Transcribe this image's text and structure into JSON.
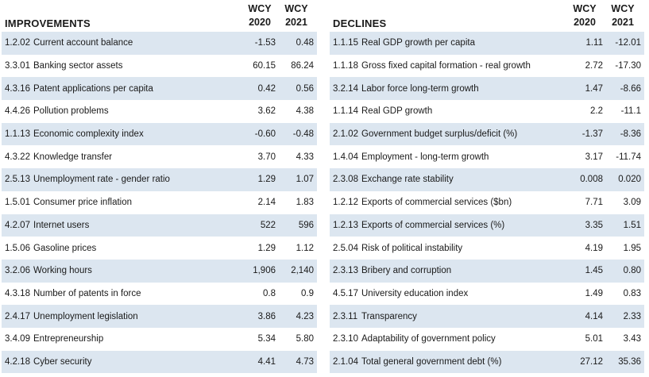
{
  "improvements": {
    "title": "IMPROVEMENTS",
    "col1_line1": "WCY",
    "col1_line2": "2020",
    "col2_line1": "WCY",
    "col2_line2": "2021",
    "rows": [
      {
        "code": "1.2.02",
        "label": "Current account balance",
        "v2020": "-1.53",
        "v2021": "0.48"
      },
      {
        "code": "3.3.01",
        "label": "Banking sector assets",
        "v2020": "60.15",
        "v2021": "86.24"
      },
      {
        "code": "4.3.16",
        "label": "Patent applications per capita",
        "v2020": "0.42",
        "v2021": "0.56"
      },
      {
        "code": "4.4.26",
        "label": "Pollution problems",
        "v2020": "3.62",
        "v2021": "4.38"
      },
      {
        "code": "1.1.13",
        "label": "Economic complexity index",
        "v2020": "-0.60",
        "v2021": "-0.48"
      },
      {
        "code": "4.3.22",
        "label": "Knowledge transfer",
        "v2020": "3.70",
        "v2021": "4.33"
      },
      {
        "code": "2.5.13",
        "label": "Unemployment rate - gender ratio",
        "v2020": "1.29",
        "v2021": "1.07"
      },
      {
        "code": "1.5.01",
        "label": "Consumer price inflation",
        "v2020": "2.14",
        "v2021": "1.83"
      },
      {
        "code": "4.2.07",
        "label": "Internet users",
        "v2020": "522",
        "v2021": "596"
      },
      {
        "code": "1.5.06",
        "label": "Gasoline prices",
        "v2020": "1.29",
        "v2021": "1.12"
      },
      {
        "code": "3.2.06",
        "label": "Working hours",
        "v2020": "1,906",
        "v2021": "2,140"
      },
      {
        "code": "4.3.18",
        "label": "Number of patents in force",
        "v2020": "0.8",
        "v2021": "0.9"
      },
      {
        "code": "2.4.17",
        "label": "Unemployment legislation",
        "v2020": "3.86",
        "v2021": "4.23"
      },
      {
        "code": "3.4.09",
        "label": "Entrepreneurship",
        "v2020": "5.34",
        "v2021": "5.80"
      },
      {
        "code": "4.2.18",
        "label": "Cyber security",
        "v2020": "4.41",
        "v2021": "4.73"
      }
    ]
  },
  "declines": {
    "title": "DECLINES",
    "col1_line1": "WCY",
    "col1_line2": "2020",
    "col2_line1": "WCY",
    "col2_line2": "2021",
    "rows": [
      {
        "code": "1.1.15",
        "label": "Real GDP growth per capita",
        "v2020": "1.11",
        "v2021": "-12.01"
      },
      {
        "code": "1.1.18",
        "label": "Gross fixed capital formation - real growth",
        "v2020": "2.72",
        "v2021": "-17.30"
      },
      {
        "code": "3.2.14",
        "label": "Labor force long-term growth",
        "v2020": "1.47",
        "v2021": "-8.66"
      },
      {
        "code": "1.1.14",
        "label": "Real GDP growth",
        "v2020": "2.2",
        "v2021": "-11.1"
      },
      {
        "code": "2.1.02",
        "label": "Government budget surplus/deficit (%)",
        "v2020": "-1.37",
        "v2021": "-8.36"
      },
      {
        "code": "1.4.04",
        "label": "Employment - long-term growth",
        "v2020": "3.17",
        "v2021": "-11.74"
      },
      {
        "code": "2.3.08",
        "label": "Exchange rate stability",
        "v2020": "0.008",
        "v2021": "0.020"
      },
      {
        "code": "1.2.12",
        "label": "Exports of commercial services ($bn)",
        "v2020": "7.71",
        "v2021": "3.09"
      },
      {
        "code": "1.2.13",
        "label": "Exports of commercial services (%)",
        "v2020": "3.35",
        "v2021": "1.51"
      },
      {
        "code": "2.5.04",
        "label": "Risk of political instability",
        "v2020": "4.19",
        "v2021": "1.95"
      },
      {
        "code": "2.3.13",
        "label": "Bribery and corruption",
        "v2020": "1.45",
        "v2021": "0.80"
      },
      {
        "code": "4.5.17",
        "label": "University education index",
        "v2020": "1.49",
        "v2021": "0.83"
      },
      {
        "code": "2.3.11",
        "label": "Transparency",
        "v2020": "4.14",
        "v2021": "2.33"
      },
      {
        "code": "2.3.10",
        "label": "Adaptability of government policy",
        "v2020": "5.01",
        "v2021": "3.43"
      },
      {
        "code": "2.1.04",
        "label": "Total general government debt (%)",
        "v2020": "27.12",
        "v2021": "35.36"
      }
    ]
  }
}
